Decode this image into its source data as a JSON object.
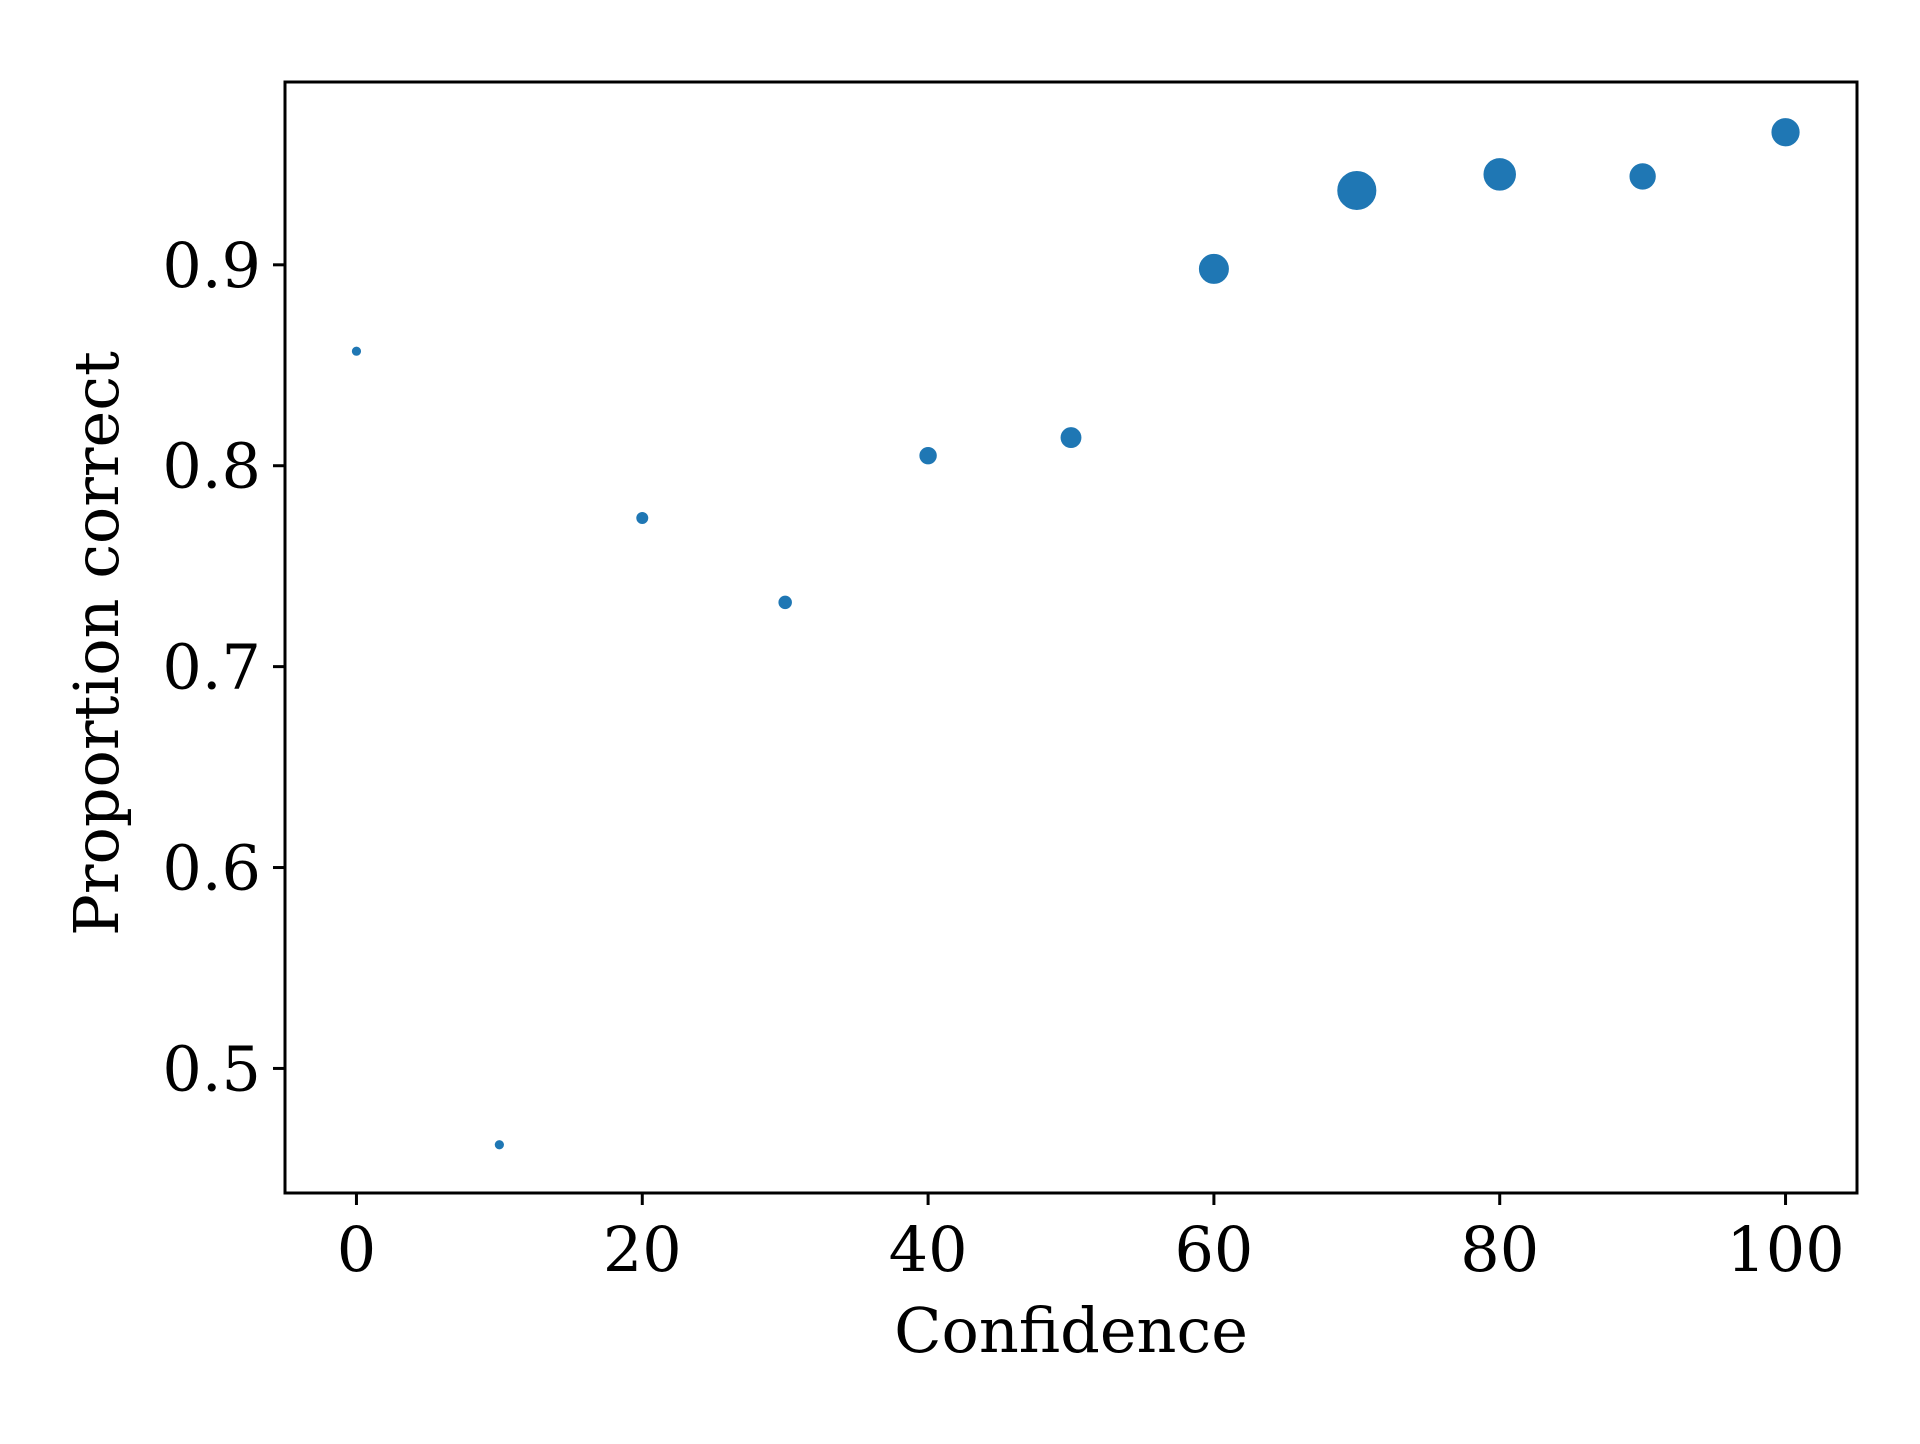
{
  "chart_data": {
    "type": "scatter",
    "title": "",
    "xlabel": "Confidence",
    "ylabel": "Proportion correct",
    "xlim": [
      -5,
      105
    ],
    "ylim": [
      0.438,
      0.991
    ],
    "xticks": [
      0,
      20,
      40,
      60,
      80,
      100
    ],
    "xtick_labels": [
      "0",
      "20",
      "40",
      "60",
      "80",
      "100"
    ],
    "yticks": [
      0.5,
      0.6,
      0.7,
      0.8,
      0.9
    ],
    "ytick_labels": [
      "0.5",
      "0.6",
      "0.7",
      "0.8",
      "0.9"
    ],
    "grid": false,
    "legend": "none",
    "marker_color": "#1f77b4",
    "marker_size_note": "marker area scales with number of responses (relative sizes below)",
    "points": [
      {
        "x": 0,
        "y": 0.857,
        "size": 1.0
      },
      {
        "x": 10,
        "y": 0.462,
        "size": 1.0
      },
      {
        "x": 20,
        "y": 0.774,
        "size": 1.6
      },
      {
        "x": 30,
        "y": 0.732,
        "size": 2.0
      },
      {
        "x": 40,
        "y": 0.805,
        "size": 3.2
      },
      {
        "x": 50,
        "y": 0.814,
        "size": 4.5
      },
      {
        "x": 60,
        "y": 0.898,
        "size": 9.0
      },
      {
        "x": 70,
        "y": 0.937,
        "size": 15.0
      },
      {
        "x": 80,
        "y": 0.945,
        "size": 10.5
      },
      {
        "x": 90,
        "y": 0.944,
        "size": 7.0
      },
      {
        "x": 100,
        "y": 0.966,
        "size": 8.0
      }
    ]
  }
}
